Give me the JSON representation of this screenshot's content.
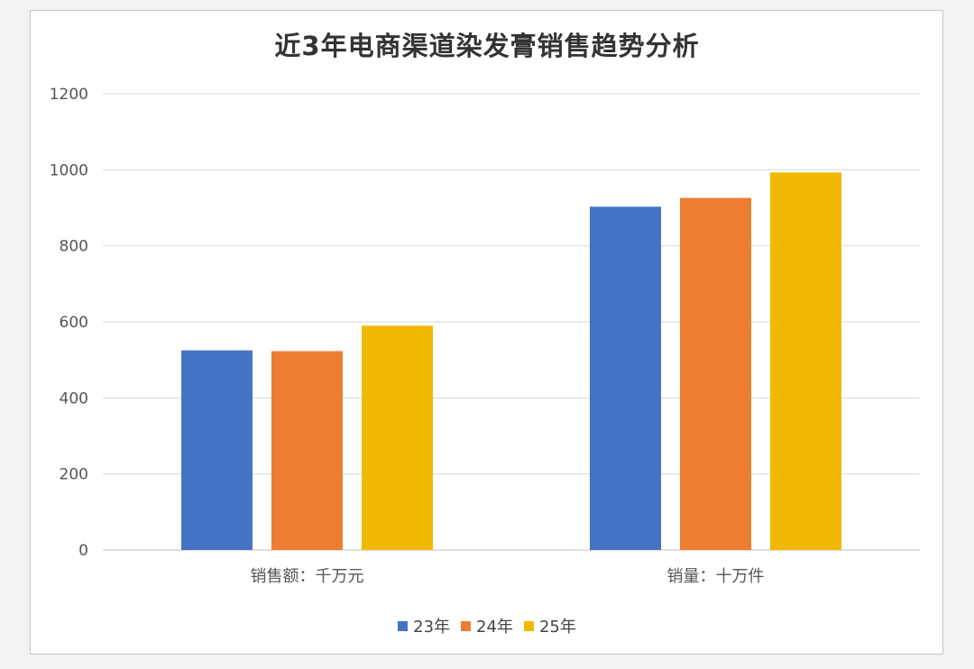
{
  "chart_data": {
    "type": "bar",
    "title": "近3年电商渠道染发膏销售趋势分析",
    "categories": [
      "销售额：千万元",
      "销量：十万件"
    ],
    "series": [
      {
        "name": "23年",
        "color": "#4472c4",
        "values": [
          525,
          903
        ]
      },
      {
        "name": "24年",
        "color": "#ed7d31",
        "values": [
          523,
          926
        ]
      },
      {
        "name": "25年",
        "color": "#f0b800",
        "values": [
          590,
          993
        ]
      }
    ],
    "yticks": [
      "0",
      "200",
      "400",
      "600",
      "800",
      "1000",
      "1200"
    ],
    "ylim": [
      0,
      1200
    ],
    "grid": true,
    "legend_position": "bottom"
  }
}
